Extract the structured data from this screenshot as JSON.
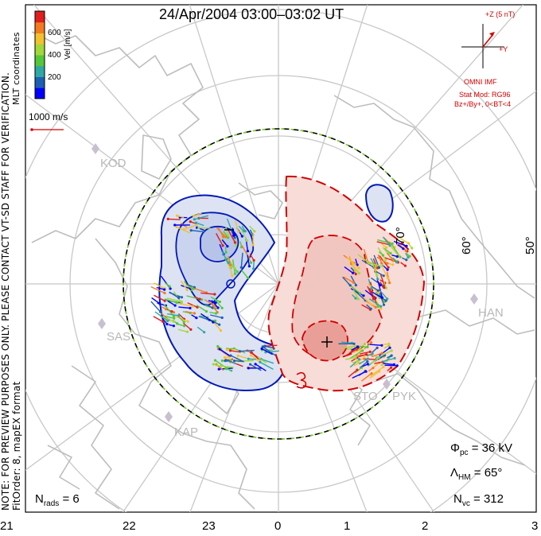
{
  "title": "24/Apr/2004 03:00–03:02 UT",
  "colorbar": {
    "label": "Vel [m/s]",
    "ticks": [
      "600",
      "400",
      "200"
    ],
    "colors": [
      "#0000ff",
      "#1d5fb5",
      "#2fa7a4",
      "#54c838",
      "#a2d83a",
      "#f2c12e",
      "#f47a20",
      "#e21d1d"
    ]
  },
  "side_text": {
    "line1": "NOTE: FOR PREVIEW PURPOSES ONLY. PLEASE CONTACT VT-SD STAFF FOR VERIFICATION.",
    "line2": "FitOrder: 8, mapEX format",
    "coords": "MLT coordinates"
  },
  "scale": {
    "label": "1000 m/s"
  },
  "imf": {
    "z_label": "+Z (5 nT)",
    "y_label": "+Y",
    "source": "OMNI IMF",
    "model": "Stat Mod: RG96",
    "condition": "Bz+/By+, 0<BT<4"
  },
  "stats": {
    "phi_pc": {
      "sym": "Φ",
      "sub": "pc",
      "value": "= 36 kV"
    },
    "lambda_hm": {
      "sym": "Λ",
      "sub": "HM",
      "value": "= 65°"
    },
    "n_vc": {
      "sym": "N",
      "sub": "vc",
      "value": "= 312"
    },
    "n_rads": {
      "sym": "N",
      "sub": "rads",
      "value": "= 6"
    }
  },
  "mlt_ticks": [
    "21",
    "22",
    "23",
    "0",
    "1",
    "2",
    "3"
  ],
  "lat_labels": [
    "70°",
    "60°",
    "50°"
  ],
  "stations": [
    "KOD",
    "SAS",
    "KAP",
    "HAN",
    "STO",
    "PYK"
  ],
  "contour_labels": {
    "min": "−",
    "max": "+",
    "three": "3"
  },
  "colors": {
    "negative_cell": "#0018b8",
    "negative_fill": "#dde3f3",
    "positive_cell": "#d20000",
    "positive_fill": "#f7dcd8",
    "grid": "#c8c8c8",
    "coast": "#bdbdbd",
    "boundary_green": "#7ccf2a",
    "annotation_red": "#d40000"
  }
}
